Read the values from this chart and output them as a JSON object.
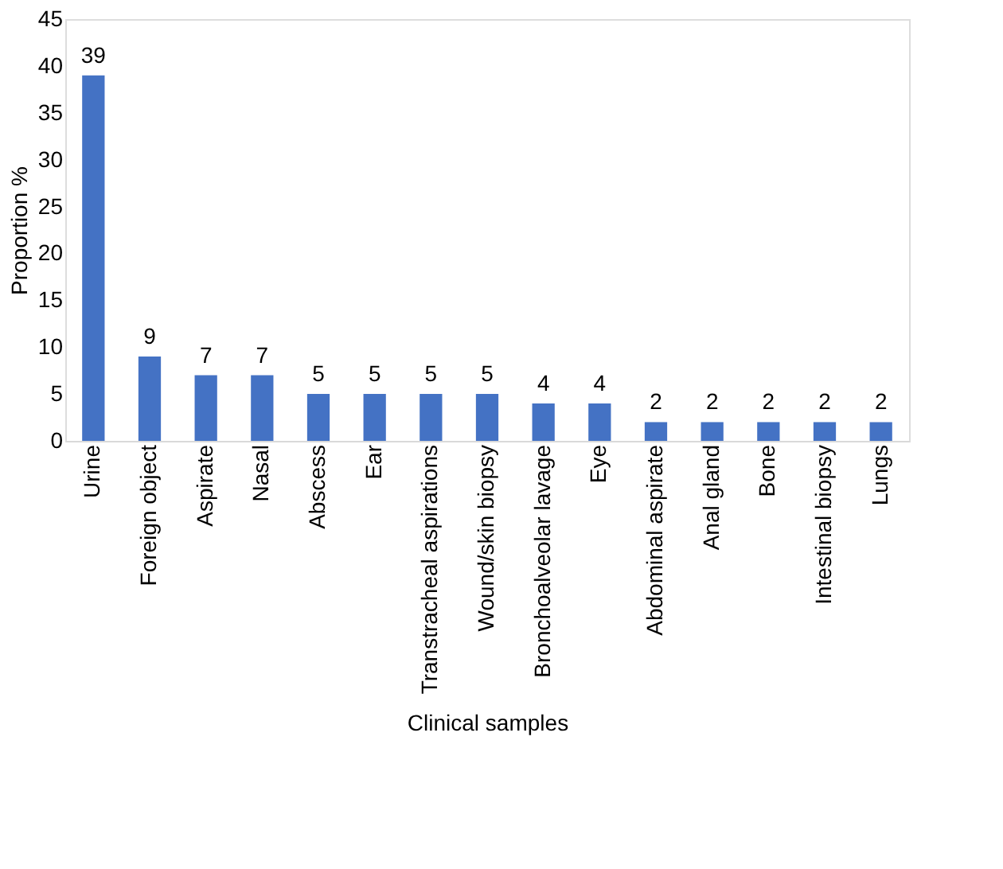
{
  "chart_data": {
    "type": "bar",
    "xlabel": "Clinical samples",
    "ylabel": "Proportion %",
    "categories": [
      "Urine",
      "Foreign object",
      "Aspirate",
      "Nasal",
      "Abscess",
      "Ear",
      "Transtracheal aspirations",
      "Wound/skin biopsy",
      "Bronchoalveolar lavage",
      "Eye",
      "Abdominal aspirate",
      "Anal gland",
      "Bone",
      "Intestinal biopsy",
      "Lungs"
    ],
    "values": [
      39,
      9,
      7,
      7,
      5,
      5,
      5,
      5,
      4,
      4,
      2,
      2,
      2,
      2,
      2
    ],
    "color": "#4472c4",
    "ylim": [
      0,
      45
    ],
    "yticks": [
      0,
      5,
      10,
      15,
      20,
      25,
      30,
      35,
      40,
      45
    ],
    "grid": false,
    "data_labels": true
  }
}
